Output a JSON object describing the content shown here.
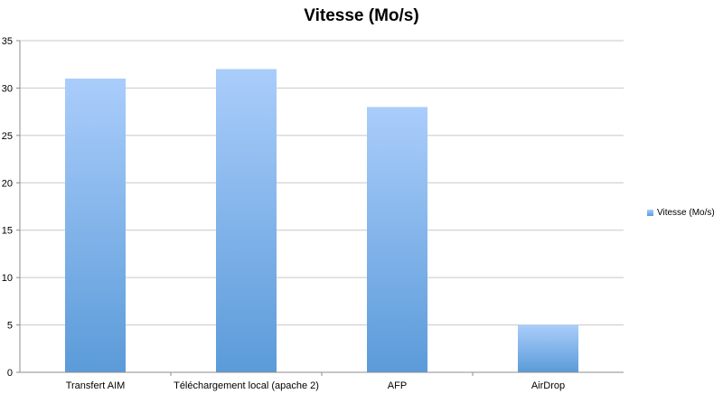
{
  "chart_data": {
    "type": "bar",
    "title": "Vitesse (Mo/s)",
    "categories": [
      "Transfert AIM",
      "Téléchargement local (apache 2)",
      "AFP",
      "AirDrop"
    ],
    "series": [
      {
        "name": "Vitesse (Mo/s)",
        "values": [
          31,
          32,
          28,
          5
        ]
      }
    ],
    "xlabel": "",
    "ylabel": "",
    "ylim": [
      0,
      35
    ],
    "yticks": [
      0,
      5,
      10,
      15,
      20,
      25,
      30,
      35
    ],
    "grid": true,
    "legend_position": "right",
    "colors": {
      "bar_top": "#aacdfb",
      "bar_bottom": "#5b9bd9",
      "grid": "#c8c8c8",
      "axis": "#8c8c8c"
    }
  }
}
